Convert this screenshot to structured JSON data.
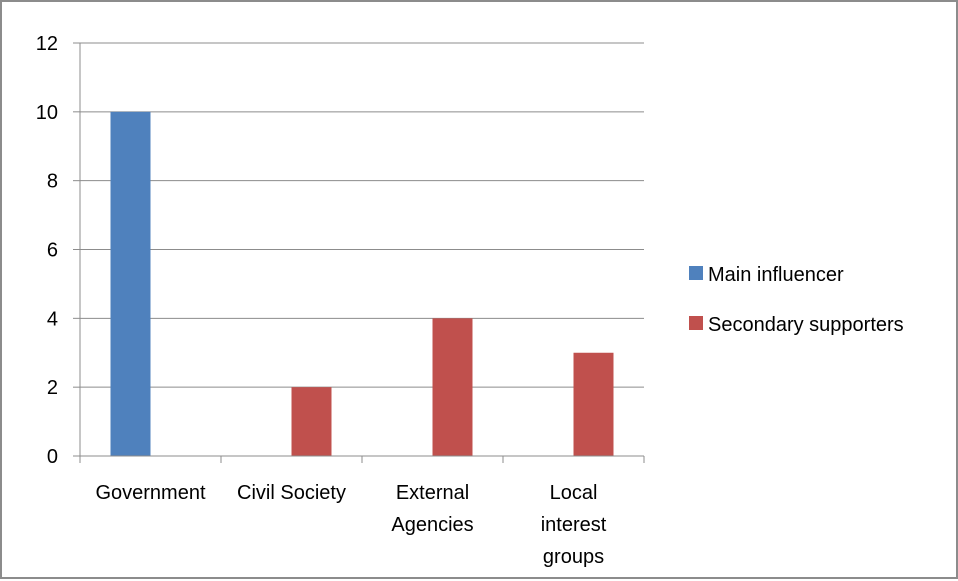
{
  "chart_data": {
    "type": "bar",
    "categories": [
      [
        "Government"
      ],
      [
        "Civil Society"
      ],
      [
        "External",
        "Agencies"
      ],
      [
        "Local",
        "interest",
        "groups"
      ]
    ],
    "series": [
      {
        "name": "Main influencer",
        "color": "#4f81bd",
        "values": [
          10,
          0,
          0,
          0
        ]
      },
      {
        "name": "Secondary supporters",
        "color": "#c0504d",
        "values": [
          0,
          2,
          4,
          3
        ]
      }
    ],
    "ylim": [
      0,
      12
    ],
    "yticks": [
      0,
      2,
      4,
      6,
      8,
      10,
      12
    ],
    "grid": true,
    "legend_position": "right"
  }
}
